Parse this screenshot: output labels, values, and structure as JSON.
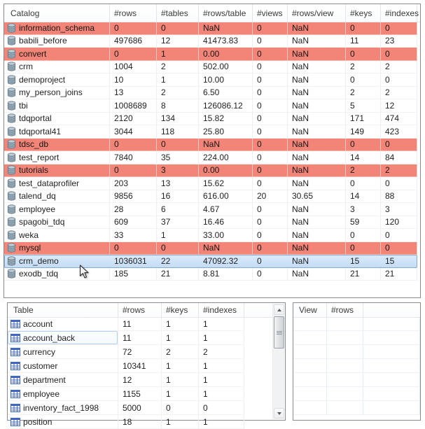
{
  "colors": {
    "flagged_row_bg": "#f28577",
    "selected_row_top": "#dcebfb",
    "selected_row_bottom": "#c3dbf5",
    "selected_row_border": "#84aad6",
    "panel_border": "#888b90"
  },
  "catalog_table": {
    "columns": [
      "Catalog",
      "#rows",
      "#tables",
      "#rows/table",
      "#views",
      "#rows/view",
      "#keys",
      "#indexes"
    ],
    "row_icon": "database-icon",
    "rows": [
      {
        "name": "information_schema",
        "values": [
          "0",
          "0",
          "NaN",
          "0",
          "NaN",
          "0",
          "0"
        ],
        "flagged": true
      },
      {
        "name": "babili_before",
        "values": [
          "497686",
          "12",
          "41473.83",
          "0",
          "NaN",
          "11",
          "23"
        ]
      },
      {
        "name": "convert",
        "values": [
          "0",
          "1",
          "0.00",
          "0",
          "NaN",
          "0",
          "0"
        ],
        "flagged": true
      },
      {
        "name": "crm",
        "values": [
          "1004",
          "2",
          "502.00",
          "0",
          "NaN",
          "2",
          "2"
        ]
      },
      {
        "name": "demoproject",
        "values": [
          "10",
          "1",
          "10.00",
          "0",
          "NaN",
          "0",
          "0"
        ]
      },
      {
        "name": "my_person_joins",
        "values": [
          "13",
          "2",
          "6.50",
          "0",
          "NaN",
          "2",
          "2"
        ]
      },
      {
        "name": "tbi",
        "values": [
          "1008689",
          "8",
          "126086.12",
          "0",
          "NaN",
          "5",
          "12"
        ]
      },
      {
        "name": "tdqportal",
        "values": [
          "2120",
          "134",
          "15.82",
          "0",
          "NaN",
          "171",
          "474"
        ]
      },
      {
        "name": "tdqportal41",
        "values": [
          "3044",
          "118",
          "25.80",
          "0",
          "NaN",
          "149",
          "423"
        ]
      },
      {
        "name": "tdsc_db",
        "values": [
          "0",
          "0",
          "NaN",
          "0",
          "NaN",
          "0",
          "0"
        ],
        "flagged": true
      },
      {
        "name": "test_report",
        "values": [
          "7840",
          "35",
          "224.00",
          "0",
          "NaN",
          "14",
          "84"
        ]
      },
      {
        "name": "tutorials",
        "values": [
          "0",
          "3",
          "0.00",
          "0",
          "NaN",
          "2",
          "2"
        ],
        "flagged": true
      },
      {
        "name": "test_dataprofiler",
        "values": [
          "203",
          "13",
          "15.62",
          "0",
          "NaN",
          "0",
          "0"
        ]
      },
      {
        "name": "talend_dq",
        "values": [
          "9856",
          "16",
          "616.00",
          "20",
          "30.65",
          "14",
          "88"
        ]
      },
      {
        "name": "employee",
        "values": [
          "28",
          "6",
          "4.67",
          "0",
          "NaN",
          "3",
          "3"
        ]
      },
      {
        "name": "spagobi_tdq",
        "values": [
          "609",
          "37",
          "16.46",
          "0",
          "NaN",
          "59",
          "120"
        ]
      },
      {
        "name": "weka",
        "values": [
          "33",
          "1",
          "33.00",
          "0",
          "NaN",
          "0",
          "0"
        ]
      },
      {
        "name": "mysql",
        "values": [
          "0",
          "0",
          "NaN",
          "0",
          "NaN",
          "0",
          "0"
        ],
        "flagged": true
      },
      {
        "name": "crm_demo",
        "values": [
          "1036031",
          "22",
          "47092.32",
          "0",
          "NaN",
          "15",
          "15"
        ],
        "selected": true
      },
      {
        "name": "exodb_tdq",
        "values": [
          "185",
          "21",
          "8.81",
          "0",
          "NaN",
          "21",
          "21"
        ]
      }
    ]
  },
  "table_list": {
    "columns": [
      "Table",
      "#rows",
      "#keys",
      "#indexes"
    ],
    "row_icon": "table-icon",
    "rows": [
      {
        "name": "account",
        "values": [
          "11",
          "1",
          "1"
        ]
      },
      {
        "name": "account_back",
        "values": [
          "11",
          "1",
          "1"
        ],
        "hovered": true
      },
      {
        "name": "currency",
        "values": [
          "72",
          "2",
          "2"
        ]
      },
      {
        "name": "customer",
        "values": [
          "10341",
          "1",
          "1"
        ]
      },
      {
        "name": "department",
        "values": [
          "12",
          "1",
          "1"
        ]
      },
      {
        "name": "employee",
        "values": [
          "1155",
          "1",
          "1"
        ]
      },
      {
        "name": "inventory_fact_1998",
        "values": [
          "5000",
          "0",
          "0"
        ]
      },
      {
        "name": "position",
        "values": [
          "18",
          "1",
          "1"
        ]
      }
    ]
  },
  "view_list": {
    "columns": [
      "View",
      "#rows"
    ],
    "rows": [],
    "empty_row_count": 7
  }
}
